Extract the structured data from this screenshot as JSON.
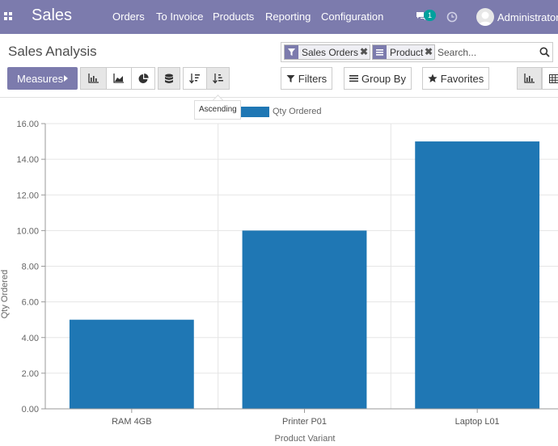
{
  "navbar": {
    "brand": "Sales",
    "menu": [
      "Orders",
      "To Invoice",
      "Products",
      "Reporting",
      "Configuration"
    ],
    "chat_count": "1",
    "user": "Administrator"
  },
  "control_panel": {
    "title": "Sales Analysis",
    "facets": [
      {
        "label": "Sales Orders",
        "icon": "filter-icon"
      },
      {
        "label": "Product",
        "icon": "groupby-icon"
      }
    ],
    "search_placeholder": "Search...",
    "measures_label": "Measures",
    "filters_label": "Filters",
    "groupby_label": "Group By",
    "favorites_label": "Favorites",
    "tooltip": "Ascending"
  },
  "colors": {
    "navbar": "#7c7bad",
    "bar": "#1f77b4"
  },
  "chart_data": {
    "type": "bar",
    "categories": [
      "RAM 4GB",
      "Printer P01",
      "Laptop L01"
    ],
    "series": [
      {
        "name": "Qty Ordered",
        "values": [
          5,
          10,
          15
        ]
      }
    ],
    "xlabel": "Product Variant",
    "ylabel": "Qty Ordered",
    "ylim": [
      0,
      16
    ],
    "yticks": [
      "0.00",
      "2.00",
      "4.00",
      "6.00",
      "8.00",
      "10.00",
      "12.00",
      "14.00",
      "16.00"
    ],
    "legend_position": "top",
    "grid": true
  }
}
